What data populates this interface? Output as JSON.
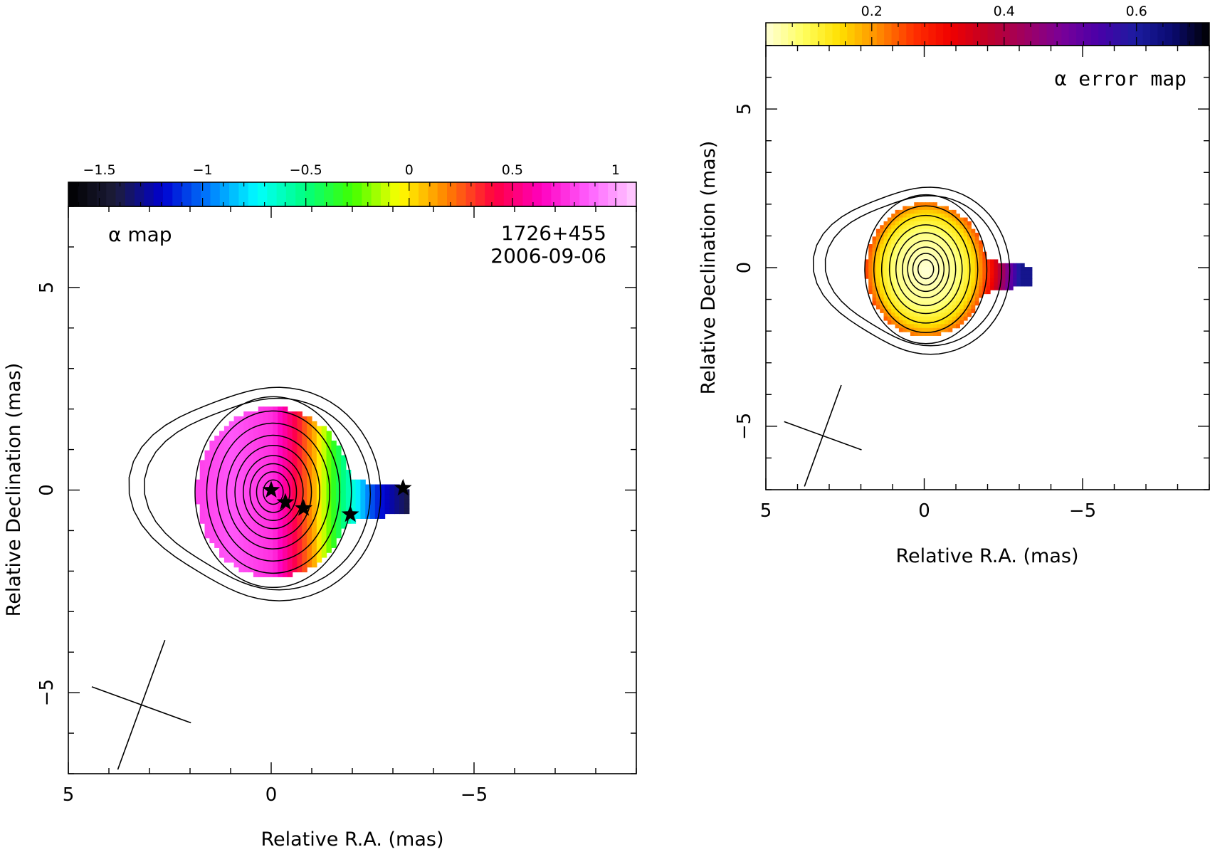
{
  "chart_data": [
    {
      "type": "heatmap",
      "panel": "left",
      "map_label": "α map",
      "source_name": "1726+455",
      "epoch": "2006-09-06",
      "xlabel": "Relative R.A. (mas)",
      "ylabel": "Relative Declination (mas)",
      "xlim": [
        5,
        -9
      ],
      "ylim": [
        -7,
        7
      ],
      "x_ticks": [
        5,
        0,
        -5
      ],
      "x_tick_labels": [
        "5",
        "0",
        "−5"
      ],
      "y_ticks": [
        -5,
        0,
        5
      ],
      "y_tick_labels": [
        "−5",
        "0",
        "5"
      ],
      "colorbar": {
        "range": [
          -1.65,
          1.1
        ],
        "ticks": [
          -1.5,
          -1,
          -0.5,
          0,
          0.5,
          1
        ],
        "tick_labels": [
          "−1.5",
          "−1",
          "−0.5",
          "0",
          "0.5",
          "1"
        ],
        "colors": [
          "#000000",
          "#1d1d3a",
          "#0000d0",
          "#0080ff",
          "#00ffff",
          "#00ff80",
          "#40ff00",
          "#ffff00",
          "#ff8000",
          "#ff0040",
          "#ff00c0",
          "#ff60ff",
          "#ffd0ff"
        ]
      },
      "spectral_index_profile": {
        "axis": "east-west",
        "x": [
          1.8,
          1,
          0,
          -0.5,
          -1,
          -1.5,
          -2,
          -2.5,
          -3.3
        ],
        "alpha": [
          0.8,
          0.85,
          0.75,
          0.45,
          0.1,
          -0.35,
          -0.7,
          -1.1,
          -1.4
        ]
      },
      "component_markers": [
        {
          "x": 0.0,
          "y": 0.0
        },
        {
          "x": -0.35,
          "y": -0.3
        },
        {
          "x": -0.8,
          "y": -0.45
        },
        {
          "x": -1.95,
          "y": -0.6
        },
        {
          "x": -3.25,
          "y": 0.05
        }
      ],
      "beam": {
        "center": [
          3.2,
          -5.3
        ],
        "major_mas": 3.4,
        "minor_mas": 2.6,
        "pa_deg": -20
      },
      "contour_scales_mas": [
        0.3,
        0.5,
        0.7,
        0.9,
        1.15,
        1.4,
        1.7,
        2.0,
        2.35
      ],
      "outer_contours": 2
    },
    {
      "type": "heatmap",
      "panel": "right",
      "map_label": "α error map",
      "xlabel": "Relative R.A. (mas)",
      "ylabel": "Relative Declination (mas)",
      "xlim": [
        5,
        -9
      ],
      "ylim": [
        -7,
        7
      ],
      "x_ticks": [
        5,
        0,
        -5
      ],
      "x_tick_labels": [
        "5",
        "0",
        "−5"
      ],
      "y_ticks": [
        -5,
        0,
        5
      ],
      "y_tick_labels": [
        "−5",
        "0",
        "5"
      ],
      "colorbar": {
        "range": [
          0.04,
          0.71
        ],
        "ticks": [
          0.2,
          0.4,
          0.6
        ],
        "tick_labels": [
          "0.2",
          "0.4",
          "0.6"
        ],
        "colors": [
          "#ffffd8",
          "#ffff60",
          "#ffe000",
          "#ff9000",
          "#ff3000",
          "#f00000",
          "#c00028",
          "#a00060",
          "#7a0098",
          "#4a00a8",
          "#1c1ca0",
          "#0a0a70",
          "#000000"
        ]
      },
      "error_profile": {
        "radius_mas": [
          0,
          1,
          1.5,
          2,
          2.5,
          3
        ],
        "error": [
          0.04,
          0.08,
          0.15,
          0.28,
          0.45,
          0.62
        ]
      },
      "beam": {
        "center": [
          3.2,
          -5.3
        ],
        "major_mas": 3.4,
        "minor_mas": 2.6,
        "pa_deg": -20
      },
      "contour_scales_mas": [
        0.3,
        0.5,
        0.7,
        0.9,
        1.15,
        1.4,
        1.7,
        2.0,
        2.35
      ],
      "outer_contours": 2
    }
  ]
}
